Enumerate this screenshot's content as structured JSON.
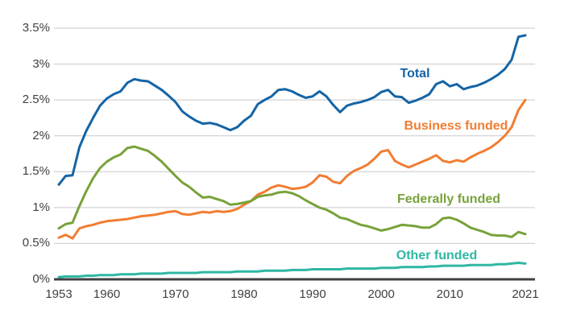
{
  "colors": {
    "background": "#ffffff",
    "gridline": "#c9c9c9",
    "axis": "#414042",
    "tick_label": "#414042",
    "total": "#1464a5",
    "business": "#f17d32",
    "federal": "#78a23a",
    "other": "#2fb7a4"
  },
  "chart_data": {
    "type": "line",
    "title": "",
    "xlabel": "",
    "ylabel": "",
    "grid": "horizontal",
    "legend_position": "inline-labels-right",
    "ylim": [
      0,
      3.5
    ],
    "y_ticks": [
      "0%",
      "0.5%",
      "1%",
      "1.5%",
      "2%",
      "2.5%",
      "3%",
      "3.5%"
    ],
    "x_ticks": [
      1953,
      1960,
      1970,
      1980,
      1990,
      2000,
      2010,
      2021
    ],
    "x": [
      1953,
      1954,
      1955,
      1956,
      1957,
      1958,
      1959,
      1960,
      1961,
      1962,
      1963,
      1964,
      1965,
      1966,
      1967,
      1968,
      1969,
      1970,
      1971,
      1972,
      1973,
      1974,
      1975,
      1976,
      1977,
      1978,
      1979,
      1980,
      1981,
      1982,
      1983,
      1984,
      1985,
      1986,
      1987,
      1988,
      1989,
      1990,
      1991,
      1992,
      1993,
      1994,
      1995,
      1996,
      1997,
      1998,
      1999,
      2000,
      2001,
      2002,
      2003,
      2004,
      2005,
      2006,
      2007,
      2008,
      2009,
      2010,
      2011,
      2012,
      2013,
      2014,
      2015,
      2016,
      2017,
      2018,
      2019,
      2020,
      2021
    ],
    "series": [
      {
        "name": "Total",
        "color": "#1464a5",
        "values": [
          1.32,
          1.44,
          1.45,
          1.84,
          2.07,
          2.25,
          2.42,
          2.52,
          2.58,
          2.62,
          2.74,
          2.79,
          2.77,
          2.76,
          2.7,
          2.64,
          2.56,
          2.47,
          2.34,
          2.27,
          2.21,
          2.17,
          2.18,
          2.16,
          2.12,
          2.08,
          2.12,
          2.21,
          2.28,
          2.44,
          2.5,
          2.55,
          2.64,
          2.65,
          2.62,
          2.57,
          2.53,
          2.55,
          2.62,
          2.55,
          2.43,
          2.33,
          2.42,
          2.45,
          2.47,
          2.5,
          2.54,
          2.61,
          2.64,
          2.55,
          2.54,
          2.46,
          2.49,
          2.53,
          2.58,
          2.72,
          2.76,
          2.69,
          2.72,
          2.65,
          2.68,
          2.7,
          2.74,
          2.79,
          2.85,
          2.93,
          3.06,
          3.38,
          3.4
        ]
      },
      {
        "name": "Business funded",
        "color": "#f17d32",
        "values": [
          0.58,
          0.62,
          0.57,
          0.71,
          0.74,
          0.76,
          0.79,
          0.81,
          0.82,
          0.83,
          0.84,
          0.86,
          0.88,
          0.89,
          0.9,
          0.92,
          0.94,
          0.95,
          0.91,
          0.9,
          0.92,
          0.94,
          0.93,
          0.95,
          0.94,
          0.95,
          0.98,
          1.04,
          1.09,
          1.18,
          1.22,
          1.28,
          1.31,
          1.29,
          1.26,
          1.27,
          1.29,
          1.35,
          1.45,
          1.43,
          1.36,
          1.34,
          1.44,
          1.51,
          1.55,
          1.6,
          1.68,
          1.78,
          1.8,
          1.65,
          1.6,
          1.56,
          1.6,
          1.64,
          1.68,
          1.73,
          1.65,
          1.63,
          1.66,
          1.64,
          1.7,
          1.75,
          1.79,
          1.84,
          1.91,
          2.0,
          2.12,
          2.36,
          2.5
        ]
      },
      {
        "name": "Federally funded",
        "color": "#78a23a",
        "values": [
          0.71,
          0.77,
          0.79,
          1.02,
          1.23,
          1.41,
          1.55,
          1.64,
          1.7,
          1.74,
          1.83,
          1.85,
          1.82,
          1.79,
          1.72,
          1.64,
          1.54,
          1.44,
          1.35,
          1.29,
          1.21,
          1.14,
          1.15,
          1.12,
          1.09,
          1.04,
          1.05,
          1.07,
          1.09,
          1.15,
          1.17,
          1.18,
          1.21,
          1.22,
          1.2,
          1.16,
          1.1,
          1.05,
          1.0,
          0.97,
          0.92,
          0.86,
          0.84,
          0.8,
          0.76,
          0.74,
          0.71,
          0.68,
          0.7,
          0.73,
          0.76,
          0.75,
          0.74,
          0.72,
          0.72,
          0.77,
          0.85,
          0.86,
          0.83,
          0.78,
          0.72,
          0.69,
          0.66,
          0.62,
          0.61,
          0.61,
          0.59,
          0.66,
          0.63
        ]
      },
      {
        "name": "Other funded",
        "color": "#2fb7a4",
        "values": [
          0.03,
          0.04,
          0.04,
          0.04,
          0.05,
          0.05,
          0.06,
          0.06,
          0.06,
          0.07,
          0.07,
          0.07,
          0.08,
          0.08,
          0.08,
          0.08,
          0.09,
          0.09,
          0.09,
          0.09,
          0.09,
          0.1,
          0.1,
          0.1,
          0.1,
          0.1,
          0.11,
          0.11,
          0.11,
          0.11,
          0.12,
          0.12,
          0.12,
          0.12,
          0.13,
          0.13,
          0.13,
          0.14,
          0.14,
          0.14,
          0.14,
          0.14,
          0.15,
          0.15,
          0.15,
          0.15,
          0.15,
          0.16,
          0.16,
          0.16,
          0.17,
          0.17,
          0.17,
          0.17,
          0.18,
          0.18,
          0.19,
          0.19,
          0.19,
          0.19,
          0.2,
          0.2,
          0.2,
          0.2,
          0.21,
          0.21,
          0.22,
          0.23,
          0.22
        ]
      }
    ]
  }
}
